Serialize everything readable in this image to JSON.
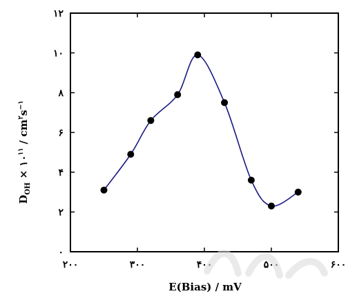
{
  "chart_data": {
    "type": "line",
    "xlabel": "E(Bias) / mV",
    "ylabel_html": [
      "D",
      "OH",
      " × ۱۰",
      "۱۱",
      " / cm",
      "۲",
      "s",
      "−۱"
    ],
    "xlim": [
      200,
      600
    ],
    "ylim": [
      0,
      12
    ],
    "x_ticks": [
      {
        "value": 200,
        "label": "۲۰۰"
      },
      {
        "value": 300,
        "label": "۳۰۰"
      },
      {
        "value": 400,
        "label": "۴۰۰"
      },
      {
        "value": 500,
        "label": "۵۰۰"
      },
      {
        "value": 600,
        "label": "۶۰۰"
      }
    ],
    "y_ticks": [
      {
        "value": 0,
        "label": "۰"
      },
      {
        "value": 2,
        "label": "۲"
      },
      {
        "value": 4,
        "label": "۴"
      },
      {
        "value": 6,
        "label": "۶"
      },
      {
        "value": 8,
        "label": "۸"
      },
      {
        "value": 10,
        "label": "۱۰"
      },
      {
        "value": 12,
        "label": "۱۲"
      }
    ],
    "series": [
      {
        "color": "#1a1a80",
        "marker_color": "#000000",
        "points": [
          [
            250,
            3.1
          ],
          [
            290,
            4.9
          ],
          [
            320,
            6.6
          ],
          [
            360,
            7.9
          ],
          [
            390,
            9.9
          ],
          [
            430,
            7.5
          ],
          [
            470,
            3.6
          ],
          [
            500,
            2.3
          ],
          [
            540,
            3.0
          ]
        ]
      }
    ],
    "grid": false,
    "legend": "none"
  }
}
